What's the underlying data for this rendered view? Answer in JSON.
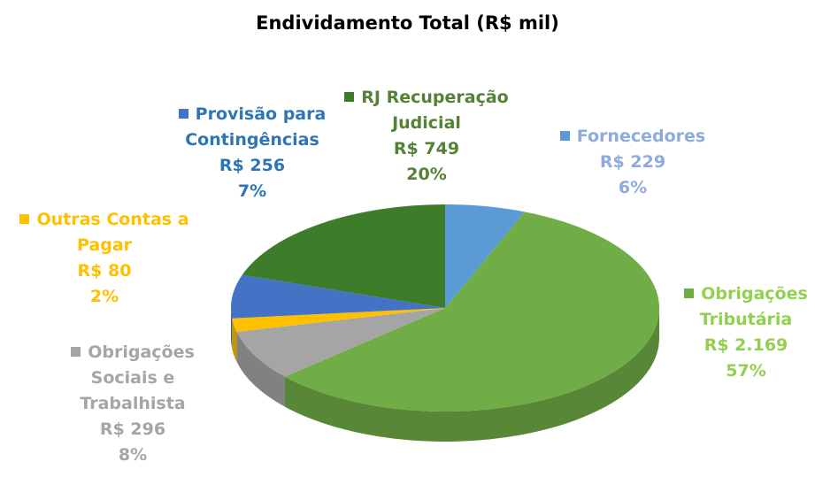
{
  "chart_data": {
    "type": "pie",
    "title": "Endividamento Total (R$ mil)",
    "categories": [
      "Fornecedores",
      "Obrigações Tributária",
      "Obrigações Sociais e Trabalhista",
      "Outras Contas a Pagar",
      "Provisão para Contingências",
      "RJ Recuperação Judicial"
    ],
    "values": [
      229,
      2169,
      296,
      80,
      256,
      749
    ],
    "value_labels": [
      "R$ 229",
      "R$ 2.169",
      "R$ 296",
      "R$ 80",
      "R$ 256",
      "R$ 749"
    ],
    "percents": [
      6,
      57,
      8,
      2,
      7,
      20
    ],
    "percent_labels": [
      "6%",
      "57%",
      "8%",
      "2%",
      "7%",
      "20%"
    ],
    "colors": [
      "#5b9bd5",
      "#70ad47",
      "#a5a5a5",
      "#ffc000",
      "#4472c4",
      "#3d7d2a"
    ],
    "label_colors": [
      "#8faadc",
      "#92d050",
      "#a5a5a5",
      "#ffc000",
      "#2e75b6",
      "#548235"
    ]
  }
}
